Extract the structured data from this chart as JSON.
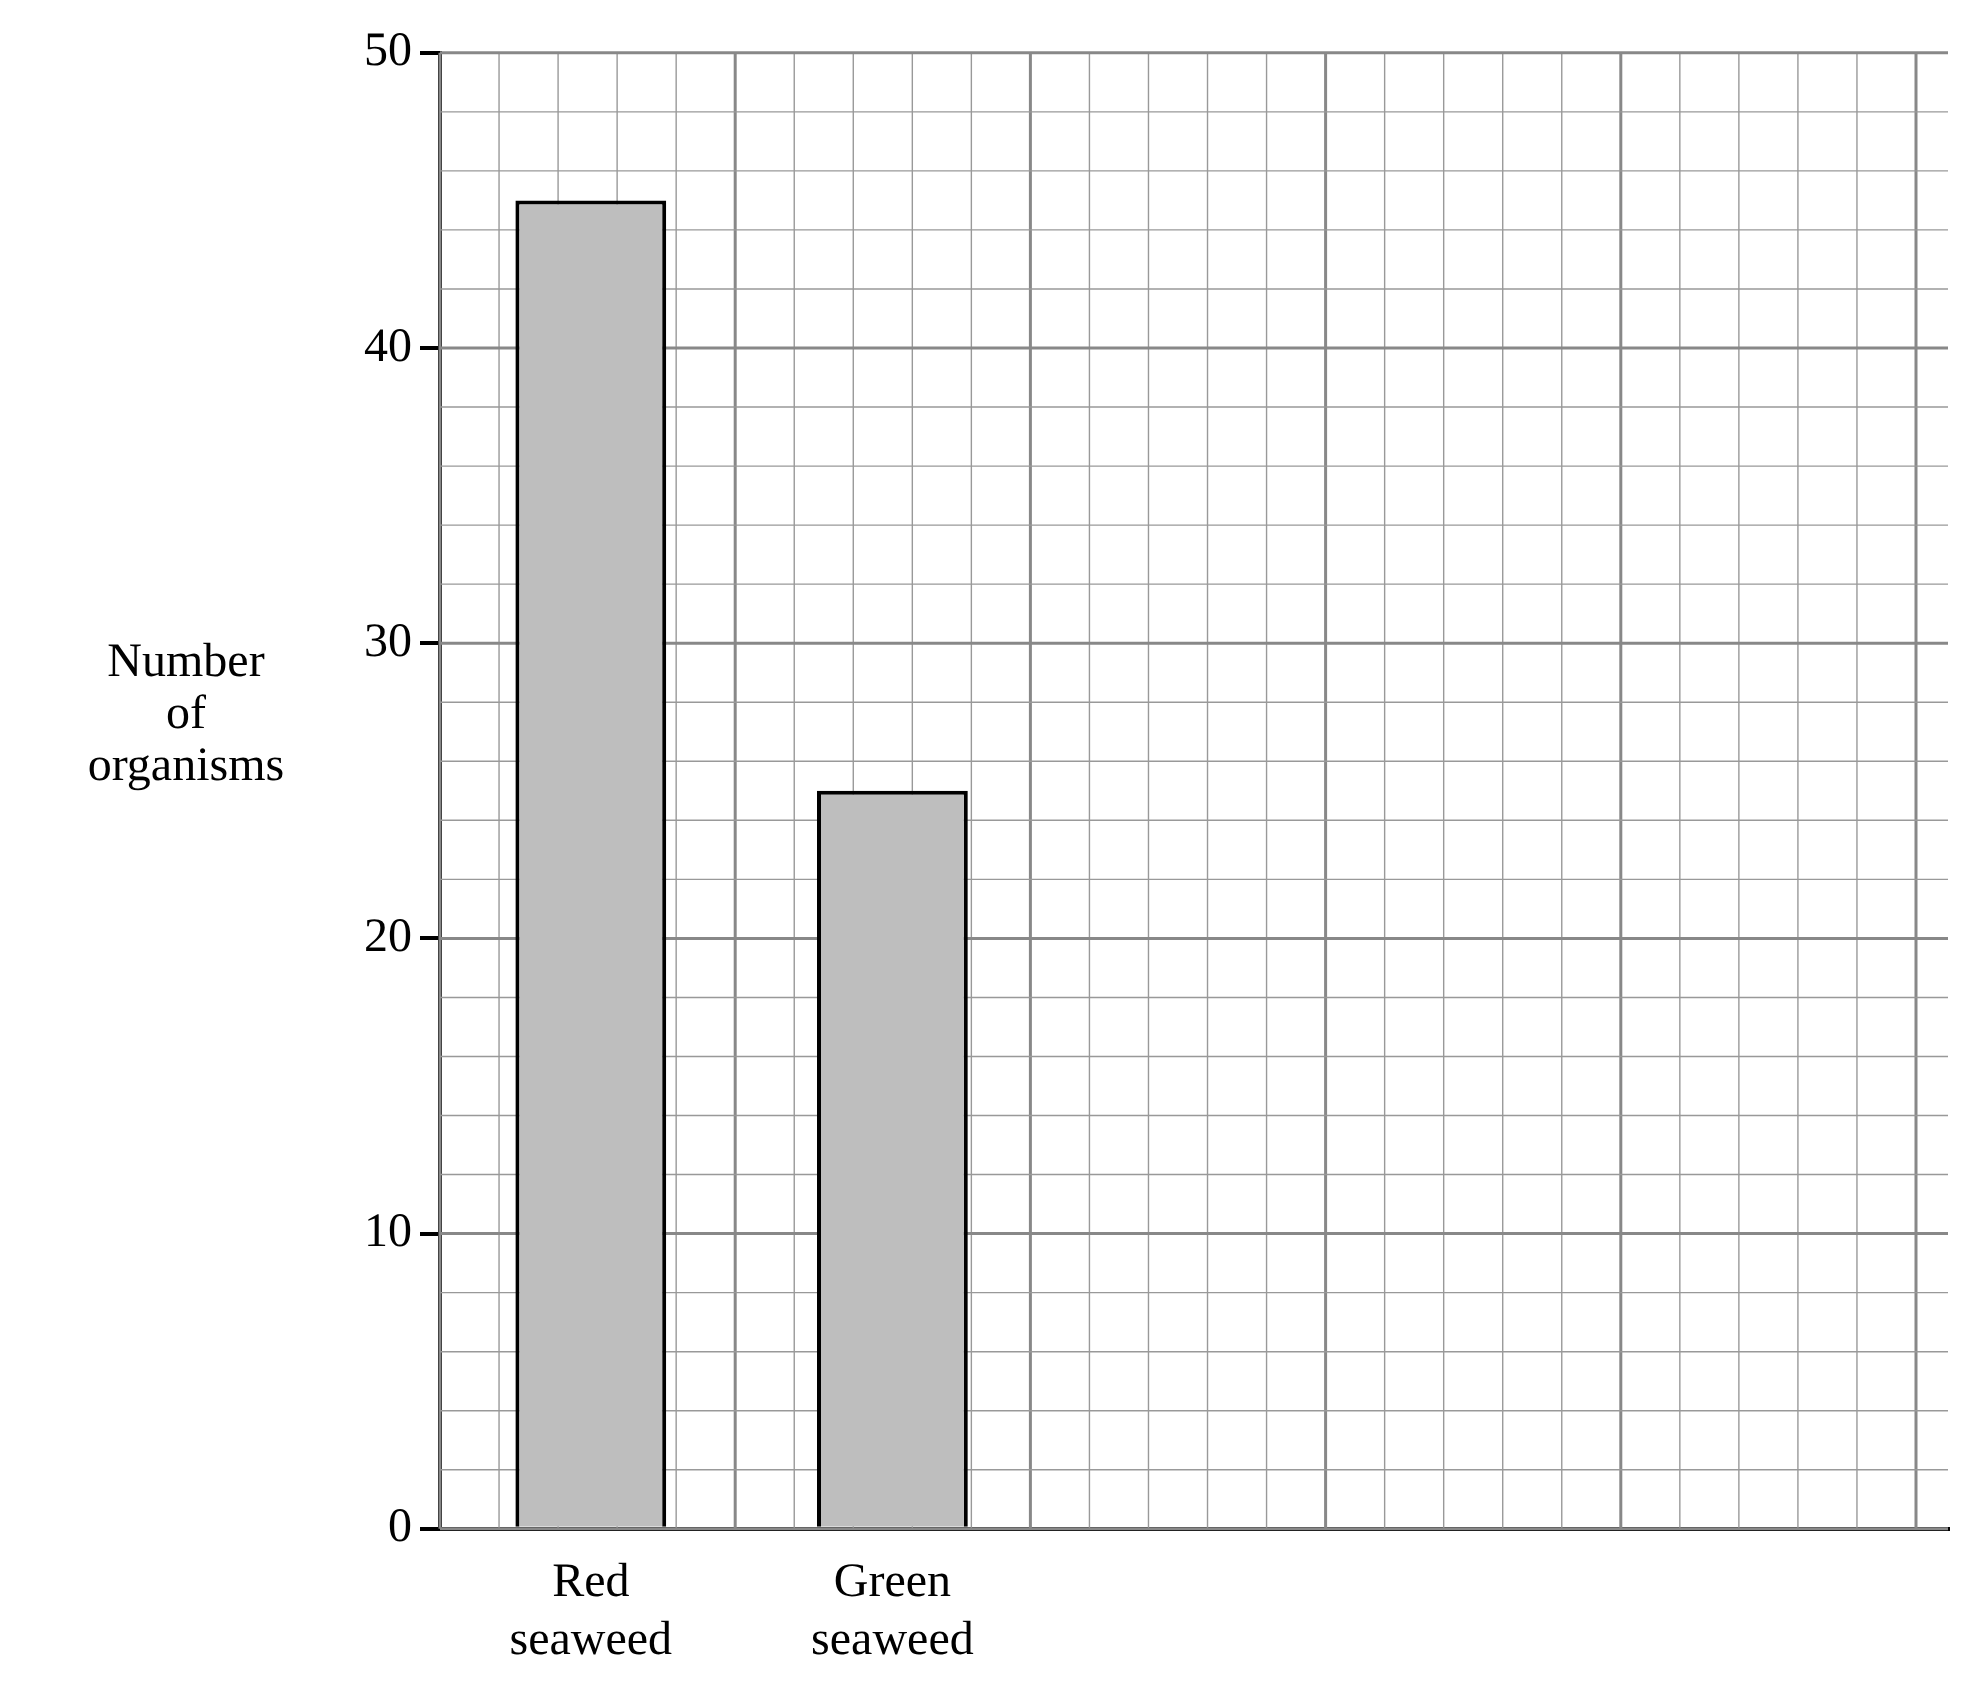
{
  "chart_data": {
    "type": "bar",
    "ylabel": "Number of organisms",
    "categories": [
      "Red seaweed",
      "Green seaweed",
      null,
      null,
      null
    ],
    "values": [
      45,
      25,
      null,
      null,
      null
    ],
    "color": "#bebebe",
    "ylim": [
      0,
      50
    ],
    "yticks": [
      0,
      10,
      20,
      30,
      40,
      50
    ],
    "grid": true,
    "legend": false
  }
}
